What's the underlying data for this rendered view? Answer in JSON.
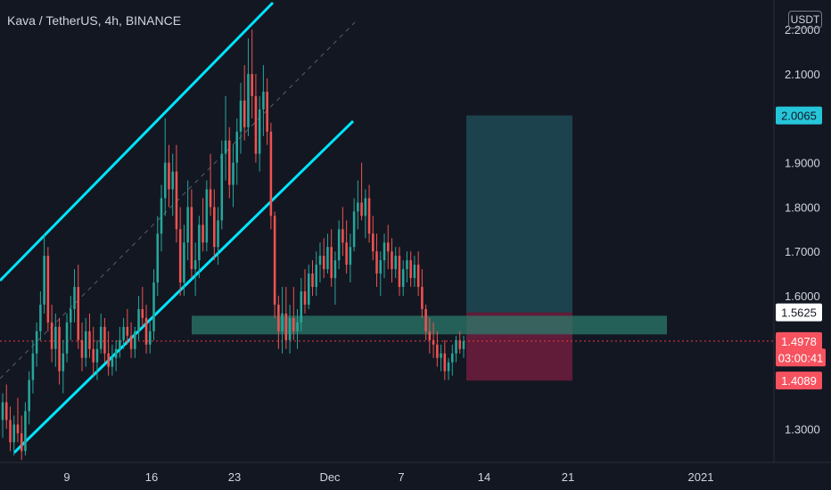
{
  "header": {
    "symbol_title": "Kava / TetherUS, 4h, BINANCE",
    "currency_button": "USDT"
  },
  "colors": {
    "background": "#131722",
    "grid": "#1e222d",
    "axis_text": "#d1d4dc",
    "candle_up": "#26a69a",
    "candle_down": "#ef5350",
    "channel_line": "#00e5ff",
    "median_line": "#787b86",
    "target_zone": "#1f4a55",
    "stop_zone": "#6f1d3c",
    "support_zone": "#2b7a69",
    "current_price_line": "#f23645",
    "label_cyan": "#26c6da",
    "label_white": "#ffffff",
    "label_pink": "#f7525f"
  },
  "chart_data": {
    "type": "candlestick",
    "title": "Kava / TetherUS, 4h, BINANCE",
    "y_axis": {
      "unit": "USDT",
      "range": [
        1.245,
        2.245
      ],
      "ticks": [
        "1.3000",
        "1.6000",
        "1.7000",
        "1.8000",
        "1.9000",
        "2.1000"
      ],
      "partial_top_tick": "2.2000"
    },
    "x_axis": {
      "ticks": [
        "9",
        "16",
        "23",
        "Dec",
        "7",
        "14",
        "21",
        "2021"
      ]
    },
    "price_labels": [
      {
        "name": "target",
        "text": "2.0065",
        "value": 2.0065,
        "style": "cyan"
      },
      {
        "name": "entry",
        "text": "1.5625",
        "value": 1.5625,
        "style": "white"
      },
      {
        "name": "last-price",
        "text": "1.4978",
        "value": 1.4978,
        "style": "pink"
      },
      {
        "name": "countdown",
        "text": "03:00:41",
        "value": 1.4609,
        "style": "pink"
      },
      {
        "name": "stop",
        "text": "1.4089",
        "value": 1.4089,
        "style": "pink"
      }
    ],
    "current_price": 1.4978,
    "support_zone": {
      "top": 1.555,
      "bottom": 1.513
    },
    "position": {
      "target": 2.0065,
      "entry": 1.5625,
      "stop": 1.4089
    },
    "grid": false,
    "candles": [
      [
        1.32,
        1.38,
        1.28,
        1.36
      ],
      [
        1.36,
        1.4,
        1.3,
        1.32
      ],
      [
        1.32,
        1.35,
        1.25,
        1.27
      ],
      [
        1.27,
        1.33,
        1.24,
        1.31
      ],
      [
        1.31,
        1.37,
        1.27,
        1.29
      ],
      [
        1.29,
        1.33,
        1.23,
        1.25
      ],
      [
        1.25,
        1.36,
        1.24,
        1.34
      ],
      [
        1.34,
        1.43,
        1.31,
        1.41
      ],
      [
        1.41,
        1.5,
        1.38,
        1.47
      ],
      [
        1.47,
        1.54,
        1.44,
        1.52
      ],
      [
        1.52,
        1.61,
        1.5,
        1.58
      ],
      [
        1.58,
        1.74,
        1.56,
        1.69
      ],
      [
        1.69,
        1.71,
        1.52,
        1.54
      ],
      [
        1.54,
        1.58,
        1.45,
        1.48
      ],
      [
        1.48,
        1.56,
        1.44,
        1.53
      ],
      [
        1.53,
        1.55,
        1.4,
        1.43
      ],
      [
        1.43,
        1.5,
        1.38,
        1.47
      ],
      [
        1.47,
        1.56,
        1.45,
        1.54
      ],
      [
        1.54,
        1.6,
        1.5,
        1.57
      ],
      [
        1.57,
        1.66,
        1.54,
        1.62
      ],
      [
        1.62,
        1.67,
        1.48,
        1.5
      ],
      [
        1.5,
        1.54,
        1.43,
        1.46
      ],
      [
        1.46,
        1.55,
        1.44,
        1.52
      ],
      [
        1.52,
        1.56,
        1.46,
        1.48
      ],
      [
        1.48,
        1.53,
        1.42,
        1.45
      ],
      [
        1.45,
        1.5,
        1.41,
        1.48
      ],
      [
        1.48,
        1.56,
        1.47,
        1.53
      ],
      [
        1.53,
        1.55,
        1.45,
        1.47
      ],
      [
        1.47,
        1.52,
        1.42,
        1.44
      ],
      [
        1.44,
        1.49,
        1.42,
        1.46
      ],
      [
        1.46,
        1.5,
        1.43,
        1.48
      ],
      [
        1.48,
        1.53,
        1.46,
        1.5
      ],
      [
        1.5,
        1.55,
        1.48,
        1.53
      ],
      [
        1.53,
        1.57,
        1.49,
        1.51
      ],
      [
        1.51,
        1.54,
        1.46,
        1.48
      ],
      [
        1.48,
        1.53,
        1.46,
        1.52
      ],
      [
        1.52,
        1.6,
        1.5,
        1.57
      ],
      [
        1.57,
        1.62,
        1.53,
        1.55
      ],
      [
        1.55,
        1.58,
        1.47,
        1.49
      ],
      [
        1.49,
        1.54,
        1.47,
        1.52
      ],
      [
        1.52,
        1.66,
        1.5,
        1.63
      ],
      [
        1.63,
        1.78,
        1.6,
        1.74
      ],
      [
        1.74,
        1.85,
        1.7,
        1.82
      ],
      [
        1.82,
        2.0,
        1.78,
        1.9
      ],
      [
        1.9,
        1.94,
        1.8,
        1.84
      ],
      [
        1.84,
        1.92,
        1.78,
        1.88
      ],
      [
        1.88,
        1.94,
        1.72,
        1.75
      ],
      [
        1.75,
        1.8,
        1.6,
        1.63
      ],
      [
        1.63,
        1.76,
        1.6,
        1.72
      ],
      [
        1.72,
        1.86,
        1.68,
        1.8
      ],
      [
        1.8,
        1.84,
        1.64,
        1.66
      ],
      [
        1.66,
        1.72,
        1.6,
        1.68
      ],
      [
        1.68,
        1.78,
        1.64,
        1.76
      ],
      [
        1.76,
        1.82,
        1.7,
        1.72
      ],
      [
        1.72,
        1.86,
        1.7,
        1.84
      ],
      [
        1.84,
        1.92,
        1.78,
        1.8
      ],
      [
        1.8,
        1.84,
        1.68,
        1.71
      ],
      [
        1.71,
        1.8,
        1.67,
        1.77
      ],
      [
        1.77,
        1.95,
        1.75,
        1.92
      ],
      [
        1.92,
        2.05,
        1.86,
        1.95
      ],
      [
        1.95,
        1.98,
        1.82,
        1.85
      ],
      [
        1.85,
        1.94,
        1.8,
        1.9
      ],
      [
        1.9,
        2.0,
        1.85,
        1.97
      ],
      [
        1.97,
        2.08,
        1.92,
        2.04
      ],
      [
        2.04,
        2.12,
        1.95,
        1.98
      ],
      [
        1.98,
        2.18,
        1.96,
        2.1
      ],
      [
        2.1,
        2.2,
        2.0,
        2.05
      ],
      [
        2.05,
        2.1,
        1.9,
        1.92
      ],
      [
        1.92,
        2.05,
        1.88,
        2.02
      ],
      [
        2.02,
        2.12,
        1.96,
        2.06
      ],
      [
        2.06,
        2.09,
        1.94,
        1.97
      ],
      [
        1.97,
        1.99,
        1.75,
        1.78
      ],
      [
        1.78,
        1.79,
        1.55,
        1.58
      ],
      [
        1.58,
        1.6,
        1.48,
        1.52
      ],
      [
        1.52,
        1.62,
        1.47,
        1.56
      ],
      [
        1.56,
        1.62,
        1.48,
        1.5
      ],
      [
        1.5,
        1.58,
        1.47,
        1.55
      ],
      [
        1.55,
        1.62,
        1.5,
        1.52
      ],
      [
        1.52,
        1.57,
        1.48,
        1.54
      ],
      [
        1.54,
        1.64,
        1.52,
        1.61
      ],
      [
        1.61,
        1.66,
        1.56,
        1.58
      ],
      [
        1.58,
        1.67,
        1.57,
        1.65
      ],
      [
        1.65,
        1.68,
        1.6,
        1.62
      ],
      [
        1.62,
        1.7,
        1.6,
        1.67
      ],
      [
        1.67,
        1.72,
        1.63,
        1.69
      ],
      [
        1.69,
        1.73,
        1.64,
        1.66
      ],
      [
        1.66,
        1.74,
        1.65,
        1.71
      ],
      [
        1.71,
        1.75,
        1.62,
        1.64
      ],
      [
        1.64,
        1.7,
        1.58,
        1.68
      ],
      [
        1.68,
        1.77,
        1.66,
        1.75
      ],
      [
        1.75,
        1.8,
        1.69,
        1.72
      ],
      [
        1.72,
        1.77,
        1.65,
        1.67
      ],
      [
        1.67,
        1.74,
        1.63,
        1.71
      ],
      [
        1.71,
        1.82,
        1.7,
        1.79
      ],
      [
        1.79,
        1.86,
        1.75,
        1.81
      ],
      [
        1.81,
        1.9,
        1.77,
        1.78
      ],
      [
        1.78,
        1.84,
        1.73,
        1.82
      ],
      [
        1.82,
        1.85,
        1.72,
        1.74
      ],
      [
        1.74,
        1.78,
        1.68,
        1.7
      ],
      [
        1.7,
        1.74,
        1.62,
        1.65
      ],
      [
        1.65,
        1.7,
        1.6,
        1.68
      ],
      [
        1.68,
        1.74,
        1.64,
        1.72
      ],
      [
        1.72,
        1.76,
        1.66,
        1.7
      ],
      [
        1.7,
        1.73,
        1.63,
        1.66
      ],
      [
        1.66,
        1.71,
        1.64,
        1.69
      ],
      [
        1.69,
        1.71,
        1.6,
        1.62
      ],
      [
        1.62,
        1.68,
        1.6,
        1.66
      ],
      [
        1.66,
        1.7,
        1.63,
        1.68
      ],
      [
        1.68,
        1.7,
        1.62,
        1.64
      ],
      [
        1.64,
        1.69,
        1.62,
        1.67
      ],
      [
        1.67,
        1.7,
        1.6,
        1.62
      ],
      [
        1.62,
        1.66,
        1.55,
        1.57
      ],
      [
        1.57,
        1.58,
        1.5,
        1.52
      ],
      [
        1.52,
        1.55,
        1.47,
        1.5
      ],
      [
        1.5,
        1.54,
        1.46,
        1.49
      ],
      [
        1.49,
        1.52,
        1.44,
        1.46
      ],
      [
        1.46,
        1.49,
        1.43,
        1.47
      ],
      [
        1.47,
        1.5,
        1.41,
        1.43
      ],
      [
        1.43,
        1.46,
        1.41,
        1.45
      ],
      [
        1.45,
        1.49,
        1.42,
        1.47
      ],
      [
        1.47,
        1.51,
        1.45,
        1.5
      ],
      [
        1.5,
        1.52,
        1.47,
        1.48
      ],
      [
        1.48,
        1.51,
        1.46,
        1.4978
      ]
    ]
  }
}
